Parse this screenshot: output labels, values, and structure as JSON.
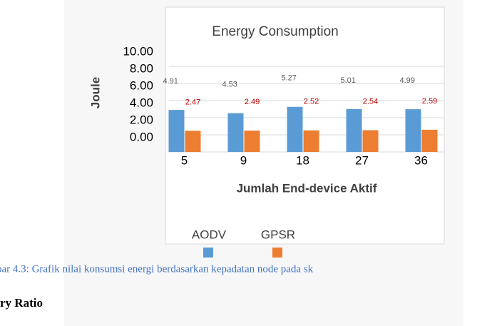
{
  "chart_data": {
    "type": "bar",
    "title": "Energy Consumption",
    "ylabel": "Joule",
    "xlabel": "Jumlah End-device Aktif",
    "categories": [
      "5",
      "9",
      "18",
      "27",
      "36"
    ],
    "series": [
      {
        "name": "AODV",
        "color": "#5b9bd5",
        "label_color": "#595959",
        "values": [
          4.91,
          4.53,
          5.27,
          5.01,
          4.99
        ]
      },
      {
        "name": "GPSR",
        "color": "#ed7d31",
        "label_color": "#c00000",
        "values": [
          2.47,
          2.49,
          2.52,
          2.54,
          2.59
        ]
      }
    ],
    "ylim": [
      0,
      10
    ],
    "yticks": [
      {
        "value": 0,
        "label": "0.00"
      },
      {
        "value": 2,
        "label": "2.00"
      },
      {
        "value": 4,
        "label": "4.00"
      },
      {
        "value": 6,
        "label": "6.00"
      },
      {
        "value": 8,
        "label": "8.00"
      },
      {
        "value": 10,
        "label": "10.00"
      }
    ],
    "grid": true,
    "legend": "bottom"
  },
  "caption": "bar 4.3: Grafik nilai konsumsi energi berdasarkan kepadatan node pada sk",
  "heading": "ry Ratio"
}
